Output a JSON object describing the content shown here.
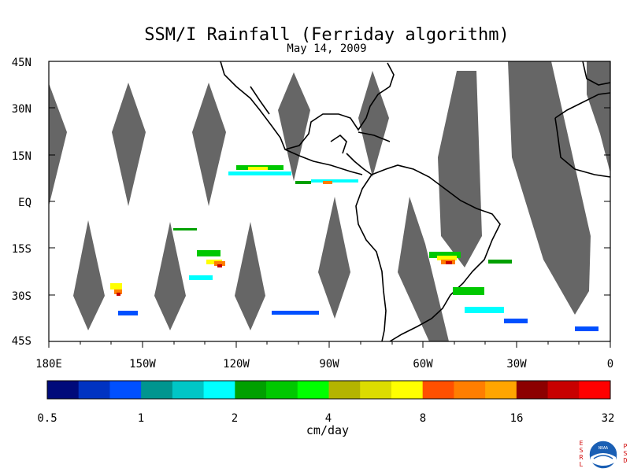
{
  "title": "SSM/I Rainfall (Ferriday algorithm)",
  "date": "May 14, 2009",
  "latitude_labels": [
    "45N",
    "30N",
    "15N",
    "EQ",
    "15S",
    "30S",
    "45S"
  ],
  "longitude_labels": [
    "180E",
    "150W",
    "120W",
    "90W",
    "60W",
    "30W",
    "0"
  ],
  "colorbar": {
    "colors": [
      "#000a7a",
      "#0033c2",
      "#0050ff",
      "#00958f",
      "#00c6c6",
      "#00ffff",
      "#00a000",
      "#00c800",
      "#00ff00",
      "#b4b400",
      "#dcdc00",
      "#ffff00",
      "#ff5000",
      "#ff7e00",
      "#ffa500",
      "#8c0000",
      "#c80000",
      "#ff0000"
    ],
    "tick_labels": [
      "0.5",
      "1",
      "2",
      "4",
      "8",
      "16",
      "32"
    ],
    "units": "cm/day"
  },
  "logo": {
    "left_letters": [
      "E",
      "S",
      "R",
      "L"
    ],
    "right_letters": [
      "P",
      "S",
      "D"
    ],
    "center_text": "NOAA"
  }
}
